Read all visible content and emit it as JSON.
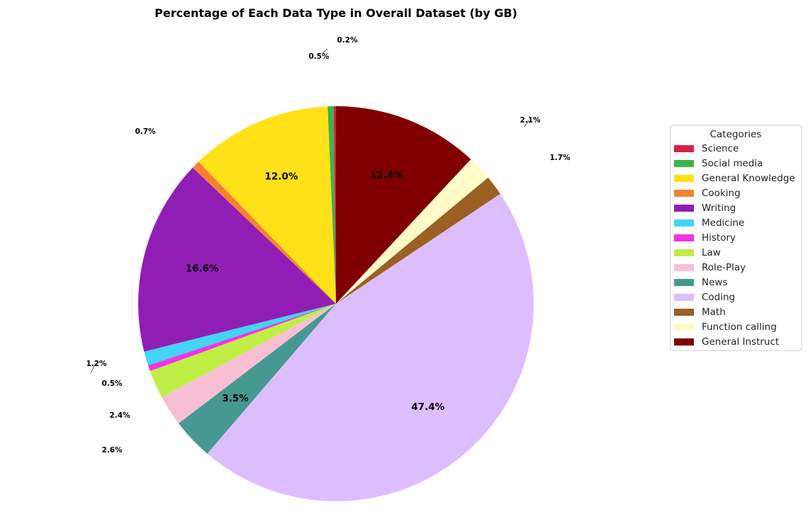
{
  "chart_data": {
    "type": "pie",
    "title": "Percentage of Each Data Type in Overall Dataset (by GB)",
    "legend_title": "Categories",
    "legend_placement": "right",
    "start_angle_deg": 90,
    "direction": "counterclockwise",
    "slices": [
      {
        "name": "Science",
        "value": 0.2,
        "label": "0.2%",
        "color": "#dc1e46",
        "label_position": "outside"
      },
      {
        "name": "Social media",
        "value": 0.5,
        "label": "0.5%",
        "color": "#3cb44b",
        "label_position": "outside"
      },
      {
        "name": "General Knowledge",
        "value": 12.0,
        "label": "12.0%",
        "color": "#ffe119",
        "label_position": "inside"
      },
      {
        "name": "Cooking",
        "value": 0.7,
        "label": "0.7%",
        "color": "#f58231",
        "label_position": "outside"
      },
      {
        "name": "Writing",
        "value": 16.6,
        "label": "16.6%",
        "color": "#911eb4",
        "label_position": "inside"
      },
      {
        "name": "Medicine",
        "value": 1.2,
        "label": "1.2%",
        "color": "#42d4f4",
        "label_position": "outside"
      },
      {
        "name": "History",
        "value": 0.5,
        "label": "0.5%",
        "color": "#f032e6",
        "label_position": "outside"
      },
      {
        "name": "Law",
        "value": 2.4,
        "label": "2.4%",
        "color": "#bfef45",
        "label_position": "outside"
      },
      {
        "name": "Role-Play",
        "value": 2.6,
        "label": "2.6%",
        "color": "#f8bfd4",
        "label_position": "outside"
      },
      {
        "name": "News",
        "value": 3.5,
        "label": "3.5%",
        "color": "#469990",
        "label_position": "inside"
      },
      {
        "name": "Coding",
        "value": 47.4,
        "label": "47.4%",
        "color": "#dcbeff",
        "label_position": "inside"
      },
      {
        "name": "Math",
        "value": 1.7,
        "label": "1.7%",
        "color": "#9a6024",
        "label_position": "outside"
      },
      {
        "name": "Function calling",
        "value": 2.1,
        "label": "2.1%",
        "color": "#fffac8",
        "label_position": "outside"
      },
      {
        "name": "General Instruct",
        "value": 12.4,
        "label": "12.4%",
        "color": "#800000",
        "label_position": "inside"
      }
    ]
  }
}
